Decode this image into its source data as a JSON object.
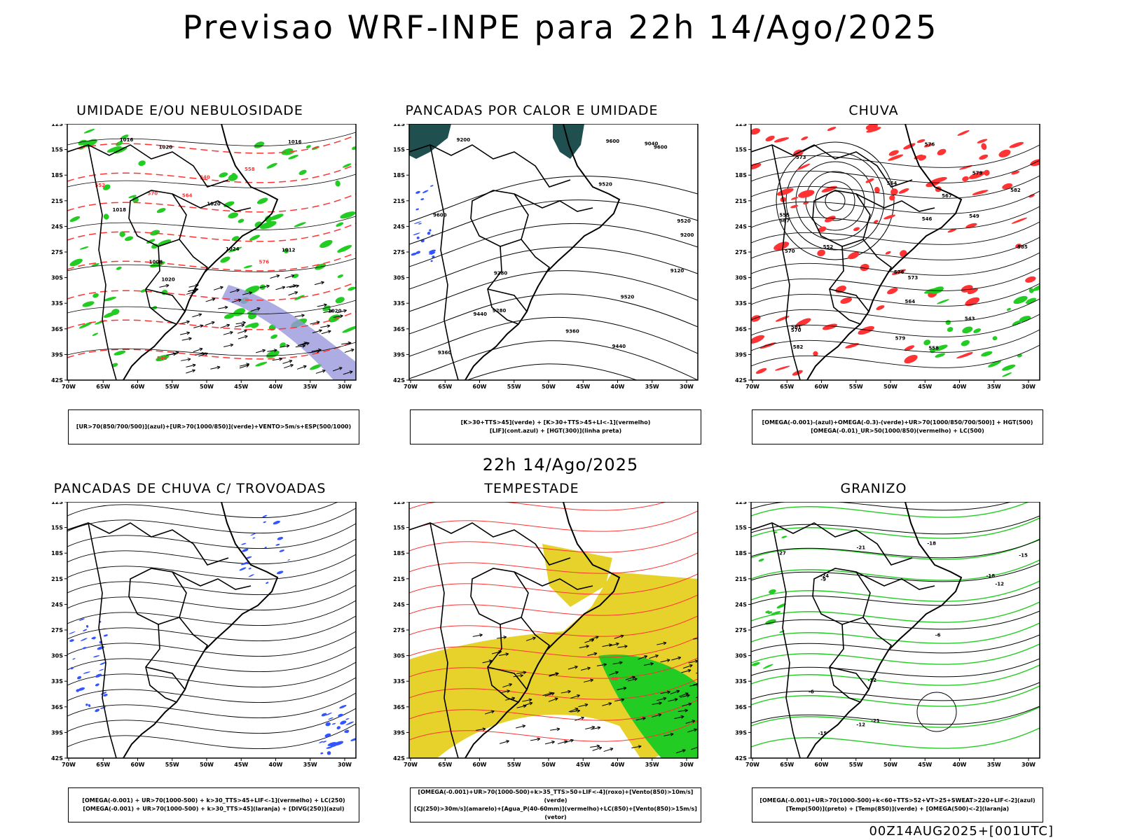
{
  "header": {
    "title": "Previsao WRF-INPE  para 22h 14/Ago/2025"
  },
  "mid_title": "22h 14/Ago/2025",
  "footer": "00Z14AUG2025+[001UTC]",
  "axes": {
    "lat_labels": [
      "12S",
      "15S",
      "18S",
      "21S",
      "24S",
      "27S",
      "30S",
      "33S",
      "36S",
      "39S",
      "42S"
    ],
    "lon_labels": [
      "70W",
      "65W",
      "60W",
      "55W",
      "50W",
      "45W",
      "40W",
      "35W",
      "30W"
    ]
  },
  "panels": [
    {
      "title": "UMIDADE E/OU NEBULOSIDADE",
      "legend": [
        "[UR>70(850/700/500)](azul)+[UR>70(1000/850)](verde)+VENTO>5m/s+ESP(500/1000)"
      ],
      "labels": [
        "1016",
        "1016",
        "1020",
        "1020",
        "1018",
        "1020",
        "1024",
        "1020",
        "1012",
        "1008",
        "576",
        "570",
        "564",
        "558",
        "552",
        "546",
        "540"
      ]
    },
    {
      "title": "PANCADAS POR CALOR E UMIDADE",
      "legend": [
        "[K>30+TTS>45](verde) + [K>30+TTS>45+LI<-1](vermelho)",
        "[LIF](cont.azul) + [HGT(300)](linha preta)"
      ],
      "labels": [
        "9600",
        "9600",
        "9600",
        "9520",
        "9520",
        "9440",
        "9360",
        "9280",
        "9200",
        "9120",
        "9040",
        "9360",
        "9280",
        "9200",
        "9440",
        "9520"
      ]
    },
    {
      "title": "CHUVA",
      "legend": [
        "[OMEGA(-0.001)-(azul)+OMEGA(-0.3)-(verde)+UR>70(1000/850/700/500)] + HGT(500)",
        "[OMEGA(-0.01)_UR>50(1000/850)(vermelho) + LC(500)"
      ],
      "labels": [
        "585",
        "582",
        "582",
        "579",
        "576",
        "573",
        "570",
        "567",
        "564",
        "561",
        "558",
        "555",
        "552",
        "549",
        "546",
        "543",
        "579",
        "576",
        "573",
        "570",
        "567",
        "564"
      ]
    },
    {
      "title": "PANCADAS DE CHUVA C/ TROVOADAS",
      "legend": [
        "[OMEGA(-0.001) + UR>70(1000-500) + k>30_TTS>45+LIF<-1](vermelho) + LC(250)",
        "[OMEGA(-0.001) + UR>70(1000-500) + k>30_TTS>45](laranja) + [DIVG(250)](azul)"
      ],
      "labels": []
    },
    {
      "title": "TEMPESTADE",
      "legend": [
        "[OMEGA(-0.001)+UR>70(1000-500)+k>35_TTS>50+LIF<-4](roxo)+[Vento(850)>10m/s](verde)",
        "[CJ(250)>30m/s](amarelo)+[Agua_P(40-60mm)](vermelho)+LC(850)+[Vento(850)>15m/s](vetor)"
      ],
      "labels": [
        "40"
      ]
    },
    {
      "title": "GRANIZO",
      "legend": [
        "[OMEGA(-0.001)+UR>70(1000-500)+k<60+TTS>52+VT>25+SWEAT>220+LIF<-2](azul)",
        "[Temp(500)](preto) + [Temp(850)](verde) + [OMEGA(500)<-2](laranja)"
      ],
      "labels": [
        "-6",
        "-9",
        "-6",
        "-12",
        "-12",
        "-15",
        "-18",
        "-21",
        "-24",
        "-27",
        "-21",
        "-18",
        "-15",
        "-12"
      ]
    }
  ],
  "colors": {
    "green": "#22cc22",
    "red": "#ff3333",
    "blue": "#3355ff",
    "yellow": "#e6d22a",
    "teal": "#1f4f4f",
    "lavender": "#9999dd"
  }
}
